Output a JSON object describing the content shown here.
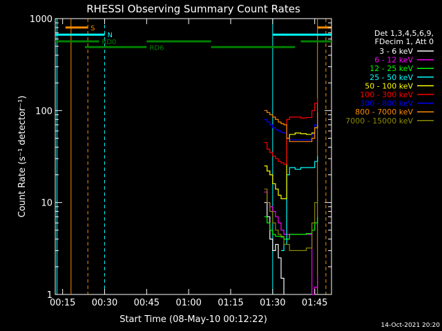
{
  "chart_data": {
    "type": "line",
    "title": "RHESSI Observing Summary Count Rates",
    "xlabel": "Start Time (08-May-10 00:12:22)",
    "ylabel": "Count Rate (s⁻¹ detector⁻¹)",
    "y_scale": "log",
    "ylim": [
      1,
      1000
    ],
    "xlim": [
      "00:12:22",
      "01:51:00"
    ],
    "x_ticks": [
      "00:15",
      "00:30",
      "00:45",
      "01:00",
      "01:15",
      "01:30",
      "01:45"
    ],
    "y_ticks": [
      "1",
      "10",
      "100",
      "1000"
    ],
    "legend_header": [
      "Det 1,3,4,5,6,9,",
      "FDecim 1, Att 0"
    ],
    "legend_position": "right",
    "series": [
      {
        "name": "3 - 6 keV",
        "color": "#ffffff",
        "x": [
          "01:27",
          "01:28",
          "01:29",
          "01:30",
          "01:31",
          "01:32",
          "01:33",
          "01:34"
        ],
        "y": [
          10,
          7,
          4,
          3,
          3.5,
          2.5,
          1.5,
          1
        ]
      },
      {
        "name": "6 - 12 keV",
        "color": "#ff00ff",
        "x": [
          "01:27",
          "01:28",
          "01:29",
          "01:30",
          "01:31",
          "01:32",
          "01:33",
          "01:34",
          "01:44",
          "01:45",
          "01:46"
        ],
        "y": [
          13,
          10,
          9,
          8,
          7,
          6,
          5,
          4.5,
          1,
          1.2,
          1.6
        ]
      },
      {
        "name": "12 - 25 keV",
        "color": "#00ff00",
        "x": [
          "01:27",
          "01:28",
          "01:29",
          "01:30",
          "01:31",
          "01:32",
          "01:33",
          "01:34",
          "01:36",
          "01:38",
          "01:40",
          "01:42",
          "01:44",
          "01:45",
          "01:46"
        ],
        "y": [
          7,
          6,
          5,
          4.5,
          4.3,
          4.3,
          4.2,
          4.0,
          4.5,
          4.5,
          4.5,
          4.6,
          5,
          6,
          7
        ]
      },
      {
        "name": "25 - 50 keV",
        "color": "#00ffff",
        "x": [
          "01:33",
          "01:34",
          "01:35",
          "01:36",
          "01:38",
          "01:40",
          "01:42",
          "01:44",
          "01:45",
          "01:46"
        ],
        "y": [
          3,
          3.5,
          20,
          24,
          23,
          24,
          24,
          24,
          28,
          32
        ]
      },
      {
        "name": "50 - 100 keV",
        "color": "#ffff00",
        "x": [
          "01:27",
          "01:28",
          "01:29",
          "01:30",
          "01:31",
          "01:32",
          "01:33",
          "01:34",
          "01:35",
          "01:36",
          "01:38",
          "01:40",
          "01:42",
          "01:44",
          "01:45",
          "01:46"
        ],
        "y": [
          25,
          22,
          20,
          16,
          14,
          12,
          11,
          11,
          50,
          55,
          57,
          56,
          55,
          57,
          65,
          75
        ]
      },
      {
        "name": "100 - 300 keV",
        "color": "#ff0000",
        "x": [
          "01:27",
          "01:28",
          "01:29",
          "01:30",
          "01:31",
          "01:32",
          "01:33",
          "01:34",
          "01:35",
          "01:36",
          "01:38",
          "01:40",
          "01:42",
          "01:44",
          "01:45",
          "01:46"
        ],
        "y": [
          45,
          38,
          35,
          32,
          30,
          28,
          27,
          26,
          80,
          85,
          85,
          83,
          84,
          100,
          120,
          135
        ]
      },
      {
        "name": "300 - 800 keV",
        "color": "#0000ff",
        "x": [
          "01:27",
          "01:28",
          "01:29",
          "01:30",
          "01:31",
          "01:32",
          "01:33",
          "01:34",
          "01:35",
          "01:36",
          "01:38",
          "01:40",
          "01:42",
          "01:44",
          "01:45",
          "01:46"
        ],
        "y": [
          80,
          75,
          70,
          65,
          62,
          60,
          58,
          57,
          50,
          48,
          48,
          48,
          48,
          55,
          70,
          90
        ]
      },
      {
        "name": "800 - 7000 keV",
        "color": "#ff8c00",
        "x": [
          "01:27",
          "01:28",
          "01:29",
          "01:30",
          "01:31",
          "01:32",
          "01:33",
          "01:34",
          "01:35",
          "01:36",
          "01:38",
          "01:40",
          "01:42",
          "01:44",
          "01:45",
          "01:46"
        ],
        "y": [
          100,
          95,
          90,
          85,
          80,
          75,
          72,
          70,
          50,
          46,
          46,
          46,
          46,
          50,
          65,
          95
        ]
      },
      {
        "name": "7000 - 15000 keV",
        "color": "#8b8b00",
        "x": [
          "01:27",
          "01:28",
          "01:29",
          "01:30",
          "01:31",
          "01:32",
          "01:33",
          "01:34",
          "01:36",
          "01:38",
          "01:40",
          "01:42",
          "01:44",
          "01:45",
          "01:46"
        ],
        "y": [
          14,
          10,
          8,
          6,
          5,
          4.5,
          4.3,
          3.5,
          3.0,
          3.0,
          3.0,
          3.2,
          6,
          10,
          14
        ]
      }
    ],
    "flag_bars": [
      {
        "label": "S",
        "color": "#ff8c00",
        "level": 800,
        "segments": [
          [
            "00:16",
            "00:24"
          ],
          [
            "01:46",
            "01:51"
          ]
        ]
      },
      {
        "label": "N",
        "color": "#00ffff",
        "level": 670,
        "segments": [
          [
            "00:12:22",
            "00:30"
          ],
          [
            "01:30",
            "01:51"
          ]
        ]
      },
      {
        "label": "RD0",
        "color": "#008000",
        "level": 565,
        "segments": [
          [
            "00:12:22",
            "00:28"
          ],
          [
            "00:45",
            "01:08"
          ],
          [
            "01:40",
            "01:51"
          ]
        ]
      },
      {
        "label": "RD6",
        "color": "#008000",
        "level": 490,
        "segments": [
          [
            "00:23",
            "00:45"
          ],
          [
            "01:08",
            "01:38"
          ]
        ]
      }
    ],
    "vlines": [
      {
        "time": "00:13",
        "color": "#00ffff",
        "style": "solid"
      },
      {
        "time": "00:18",
        "color": "#ff8c00",
        "style": "solid"
      },
      {
        "time": "00:24",
        "color": "#ff8c00",
        "style": "dashed"
      },
      {
        "time": "00:30",
        "color": "#00ffff",
        "style": "dashed"
      },
      {
        "time": "01:30",
        "color": "#00ffff",
        "style": "solid"
      },
      {
        "time": "01:46",
        "color": "#ff8c00",
        "style": "solid"
      },
      {
        "time": "01:49",
        "color": "#ff8c00",
        "style": "dashed"
      }
    ],
    "grid": false
  },
  "footer": {
    "timestamp": "14-Oct-2021 20:20"
  }
}
